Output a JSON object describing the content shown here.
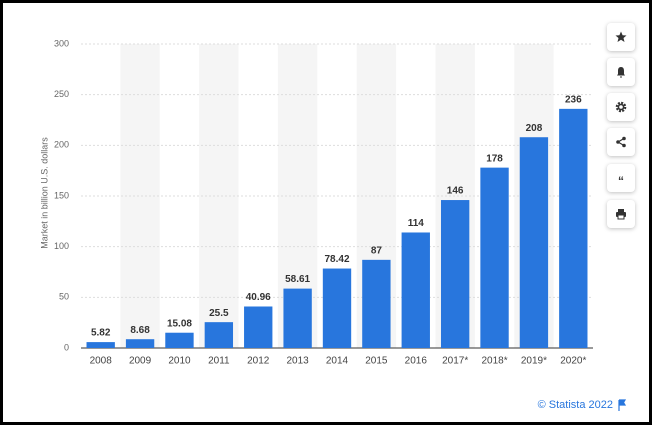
{
  "chart_data": {
    "type": "bar",
    "y_axis_label": "Market in billion U.S. dollars",
    "categories": [
      "2008",
      "2009",
      "2010",
      "2011",
      "2012",
      "2013",
      "2014",
      "2015",
      "2016",
      "2017*",
      "2018*",
      "2019*",
      "2020*"
    ],
    "values": [
      5.82,
      8.68,
      15.08,
      25.5,
      40.96,
      58.61,
      78.42,
      87,
      114,
      146,
      178,
      208,
      236
    ],
    "color": "#2876dd",
    "ylim": [
      0,
      300
    ],
    "yticks": [
      0,
      50,
      100,
      150,
      200,
      250,
      300
    ],
    "grid": true
  },
  "footer": {
    "credit": "© Statista 2022"
  }
}
